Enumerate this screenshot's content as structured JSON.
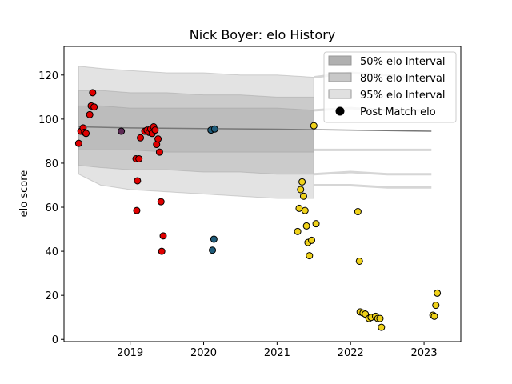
{
  "chart_data": {
    "type": "scatter",
    "title": "Nick Boyer: elo History",
    "xlabel": "",
    "ylabel": "elo score",
    "xlim": [
      2018.1,
      2023.5
    ],
    "ylim": [
      -1,
      133
    ],
    "xticks": [
      2019,
      2020,
      2021,
      2022,
      2023
    ],
    "xtick_labels": [
      "2019",
      "2020",
      "2021",
      "2022",
      "2023"
    ],
    "yticks": [
      0,
      20,
      40,
      60,
      80,
      100,
      120
    ],
    "grid": false,
    "legend_position": "top-right",
    "legend": [
      {
        "label": "50% elo Interval",
        "kind": "band",
        "color": "#b0b0b0"
      },
      {
        "label": "80% elo Interval",
        "kind": "band",
        "color": "#c8c8c8"
      },
      {
        "label": "95% elo Interval",
        "kind": "band",
        "color": "#e0e0e0"
      },
      {
        "label": "Post Match elo",
        "kind": "dot",
        "color": "#000000"
      }
    ],
    "intervals": {
      "x": [
        2018.3,
        2018.6,
        2019.0,
        2019.5,
        2020.0,
        2020.5,
        2021.0,
        2021.5
      ],
      "band95": {
        "lower": [
          75,
          70,
          68,
          67,
          66,
          65,
          64,
          64
        ],
        "upper": [
          124,
          123,
          122,
          121,
          121,
          120,
          120,
          119
        ]
      },
      "band80": {
        "lower": [
          79,
          78,
          77,
          77,
          76,
          76,
          75,
          75
        ],
        "upper": [
          113,
          113,
          112,
          112,
          111,
          111,
          110,
          110
        ]
      },
      "band50": {
        "lower": [
          86,
          86,
          86,
          85,
          85,
          85,
          85,
          85
        ],
        "upper": [
          106,
          106,
          105,
          105,
          105,
          105,
          105,
          104
        ]
      },
      "tail_lines": [
        {
          "x": [
            2021.5,
            2022.0,
            2022.5,
            2023.1
          ],
          "y": [
            119,
            121,
            120,
            118
          ]
        },
        {
          "x": [
            2021.5,
            2022.0,
            2022.5,
            2023.1
          ],
          "y": [
            104,
            105,
            104,
            104
          ]
        },
        {
          "x": [
            2021.5,
            2022.0,
            2022.5,
            2023.1
          ],
          "y": [
            86,
            86,
            86,
            86
          ]
        },
        {
          "x": [
            2021.5,
            2022.0,
            2022.5,
            2023.1
          ],
          "y": [
            75,
            76,
            75,
            75
          ]
        },
        {
          "x": [
            2021.5,
            2022.0,
            2022.5,
            2023.1
          ],
          "y": [
            70,
            70,
            69,
            69
          ]
        }
      ],
      "mean_line": {
        "x": [
          2018.3,
          2019.0,
          2020.0,
          2021.0,
          2022.0,
          2023.1
        ],
        "y": [
          96.5,
          96.0,
          95.7,
          95.4,
          95.0,
          94.5
        ]
      }
    },
    "series": [
      {
        "color": "#e00000",
        "points": [
          [
            2018.3,
            89
          ],
          [
            2018.33,
            94.5
          ],
          [
            2018.36,
            96
          ],
          [
            2018.38,
            94
          ],
          [
            2018.4,
            93.5
          ],
          [
            2018.45,
            102
          ],
          [
            2018.47,
            106
          ],
          [
            2018.49,
            112
          ],
          [
            2018.51,
            105.5
          ],
          [
            2019.08,
            82
          ],
          [
            2019.09,
            58.5
          ],
          [
            2019.1,
            72
          ],
          [
            2019.12,
            82
          ],
          [
            2019.14,
            91.5
          ],
          [
            2019.2,
            94.5
          ],
          [
            2019.23,
            95
          ],
          [
            2019.26,
            94
          ],
          [
            2019.28,
            95.5
          ],
          [
            2019.3,
            93.5
          ],
          [
            2019.32,
            96.5
          ],
          [
            2019.34,
            95
          ],
          [
            2019.36,
            88.5
          ],
          [
            2019.38,
            91
          ],
          [
            2019.4,
            85
          ],
          [
            2019.42,
            62.5
          ],
          [
            2019.43,
            40
          ],
          [
            2019.45,
            47
          ]
        ]
      },
      {
        "color": "#5e2a55",
        "points": [
          [
            2018.88,
            94.5
          ]
        ]
      },
      {
        "color": "#1f5c7a",
        "points": [
          [
            2020.1,
            95
          ],
          [
            2020.15,
            95.5
          ],
          [
            2020.12,
            40.5
          ],
          [
            2020.14,
            45.5
          ]
        ]
      },
      {
        "color": "#f0d21a",
        "points": [
          [
            2021.28,
            49
          ],
          [
            2021.3,
            59.5
          ],
          [
            2021.32,
            68
          ],
          [
            2021.34,
            71.5
          ],
          [
            2021.36,
            65
          ],
          [
            2021.38,
            58.5
          ],
          [
            2021.4,
            51.5
          ],
          [
            2021.42,
            44
          ],
          [
            2021.44,
            38
          ],
          [
            2021.47,
            45
          ],
          [
            2021.5,
            97
          ],
          [
            2021.53,
            52.5
          ],
          [
            2022.1,
            58
          ],
          [
            2022.12,
            35.5
          ],
          [
            2022.13,
            12.5
          ],
          [
            2022.17,
            12
          ],
          [
            2022.2,
            11.5
          ],
          [
            2022.25,
            9.5
          ],
          [
            2022.28,
            10
          ],
          [
            2022.34,
            10.5
          ],
          [
            2022.37,
            9.5
          ],
          [
            2022.4,
            9.5
          ],
          [
            2022.42,
            5.5
          ],
          [
            2023.12,
            11
          ],
          [
            2023.14,
            10.5
          ],
          [
            2023.16,
            15.5
          ],
          [
            2023.18,
            21
          ]
        ]
      }
    ]
  }
}
